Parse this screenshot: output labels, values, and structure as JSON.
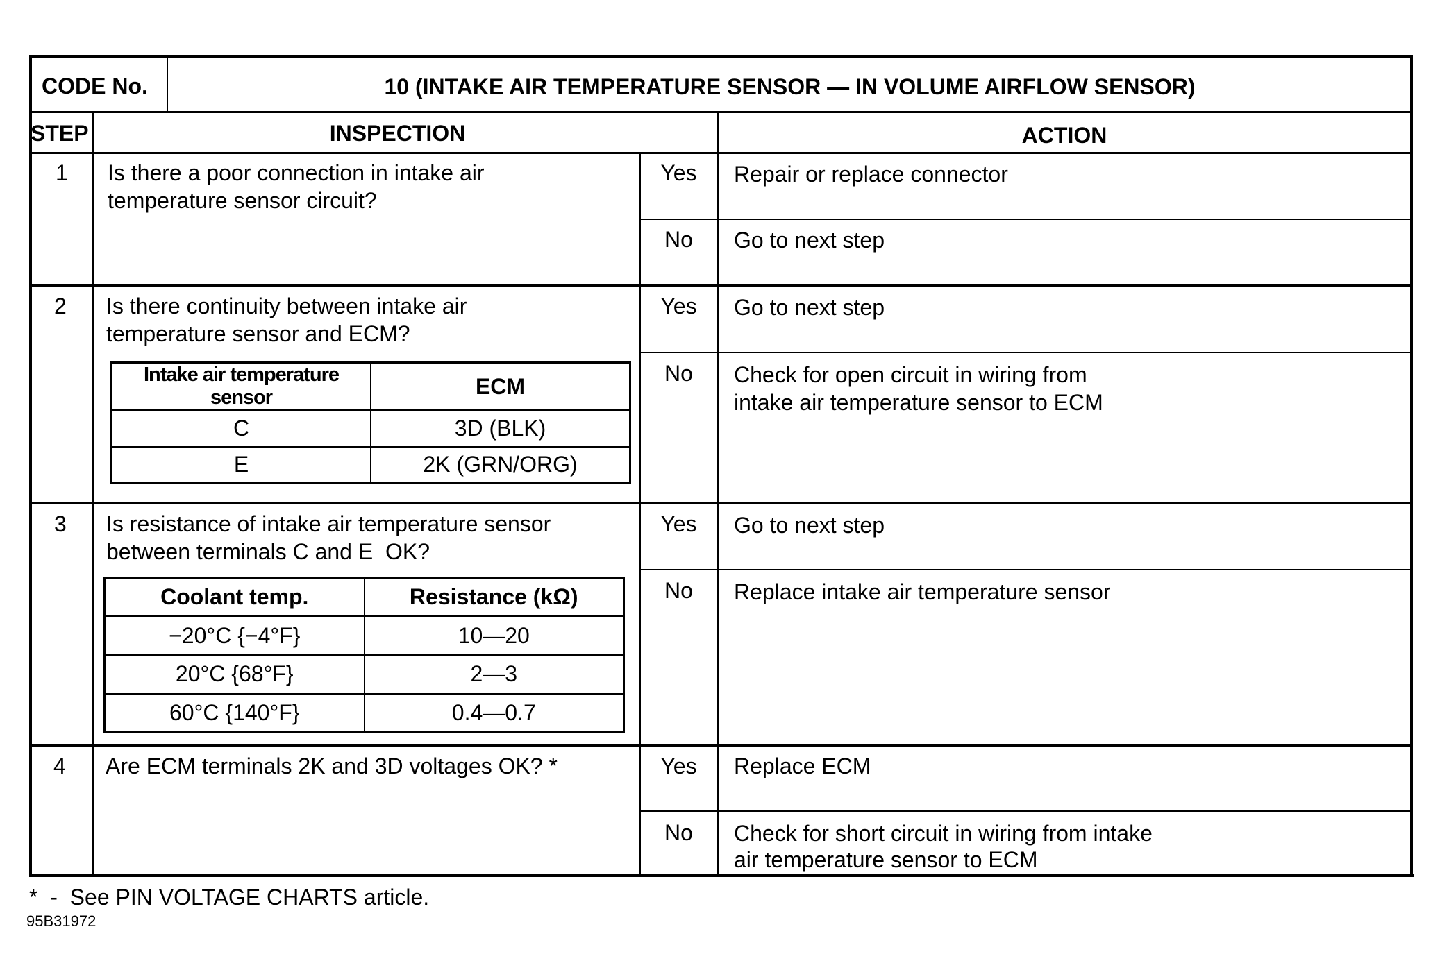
{
  "header": {
    "code_label": "CODE No.",
    "code_title": "10 (INTAKE AIR TEMPERATURE SENSOR — IN VOLUME AIRFLOW SENSOR)"
  },
  "columns": {
    "step": "STEP",
    "inspection": "INSPECTION",
    "action": "ACTION"
  },
  "steps": [
    {
      "num": "1",
      "question": "Is there a poor connection in intake air\ntemperature sensor circuit?",
      "yes_label": "Yes",
      "yes_action": "Repair or replace connector",
      "no_label": "No",
      "no_action": "Go to next step"
    },
    {
      "num": "2",
      "question": "Is there continuity between intake air\ntemperature sensor and ECM?",
      "yes_label": "Yes",
      "yes_action": "Go to next step",
      "no_label": "No",
      "no_action": "Check for open circuit in wiring from\nintake air temperature sensor to ECM",
      "table": {
        "headers": [
          "Intake air temperature sensor",
          "ECM"
        ],
        "rows": [
          [
            "C",
            "3D (BLK)"
          ],
          [
            "E",
            "2K (GRN/ORG)"
          ]
        ]
      }
    },
    {
      "num": "3",
      "question": "Is resistance of intake air temperature sensor\nbetween terminals C and E  OK?",
      "yes_label": "Yes",
      "yes_action": "Go to next step",
      "no_label": "No",
      "no_action": "Replace intake air temperature sensor",
      "table": {
        "headers": [
          "Coolant temp.",
          "Resistance (kΩ)"
        ],
        "rows": [
          [
            "−20°C {−4°F}",
            "10—20"
          ],
          [
            "20°C {68°F}",
            "2—3"
          ],
          [
            "60°C {140°F}",
            "0.4—0.7"
          ]
        ]
      }
    },
    {
      "num": "4",
      "question": "Are ECM terminals 2K and 3D voltages OK? *",
      "yes_label": "Yes",
      "yes_action": "Replace ECM",
      "no_label": "No",
      "no_action": "Check for short circuit in wiring from intake\nair temperature sensor to ECM"
    }
  ],
  "footnote": "*  -  See PIN VOLTAGE CHARTS article.",
  "figure_code": "95B31972"
}
